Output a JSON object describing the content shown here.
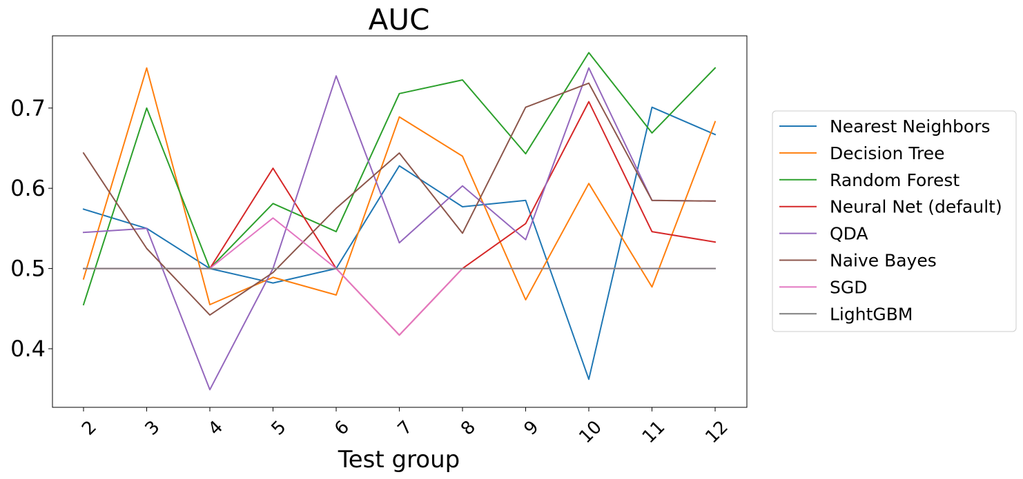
{
  "chart_data": {
    "type": "line",
    "title": "AUC",
    "xlabel": "Test group",
    "ylabel": "",
    "x": [
      "2",
      "3",
      "4",
      "5",
      "6",
      "7",
      "8",
      "9",
      "10",
      "11",
      "12"
    ],
    "ylim": [
      0.327,
      0.79
    ],
    "yticks": [
      "0.4",
      "0.5",
      "0.6",
      "0.7"
    ],
    "grid": false,
    "legend_position": "right, outside plot",
    "series": [
      {
        "name": "Nearest Neighbors",
        "color": "#1f77b4",
        "values": [
          0.574,
          0.55,
          0.5,
          0.482,
          0.5,
          0.628,
          0.577,
          0.585,
          0.362,
          0.701,
          0.667
        ]
      },
      {
        "name": "Decision Tree",
        "color": "#ff7f0e",
        "values": [
          0.487,
          0.75,
          0.455,
          0.489,
          0.467,
          0.689,
          0.64,
          0.461,
          0.606,
          0.477,
          0.683
        ]
      },
      {
        "name": "Random Forest",
        "color": "#2ca02c",
        "values": [
          0.455,
          0.7,
          0.5,
          0.581,
          0.546,
          0.718,
          0.735,
          0.643,
          0.769,
          0.669,
          0.75
        ]
      },
      {
        "name": "Neural Net (default)",
        "color": "#d62728",
        "values": [
          0.5,
          0.5,
          0.5,
          0.625,
          0.5,
          0.417,
          0.5,
          0.556,
          0.708,
          0.546,
          0.533
        ]
      },
      {
        "name": "QDA",
        "color": "#9467bd",
        "values": [
          0.545,
          0.55,
          0.349,
          0.5,
          0.74,
          0.532,
          0.603,
          0.536,
          0.75,
          0.585,
          0.584
        ]
      },
      {
        "name": "Naive Bayes",
        "color": "#8c564b",
        "values": [
          0.644,
          0.525,
          0.442,
          0.495,
          0.575,
          0.644,
          0.544,
          0.701,
          0.731,
          0.585,
          0.584
        ]
      },
      {
        "name": "SGD",
        "color": "#e377c2",
        "values": [
          0.5,
          0.5,
          0.5,
          0.563,
          0.5,
          0.417,
          0.5,
          0.5,
          0.5,
          0.5,
          0.5
        ]
      },
      {
        "name": "LightGBM",
        "color": "#7f7f7f",
        "values": [
          0.5,
          0.5,
          0.5,
          0.5,
          0.5,
          0.5,
          0.5,
          0.5,
          0.5,
          0.5,
          0.5
        ]
      }
    ]
  }
}
